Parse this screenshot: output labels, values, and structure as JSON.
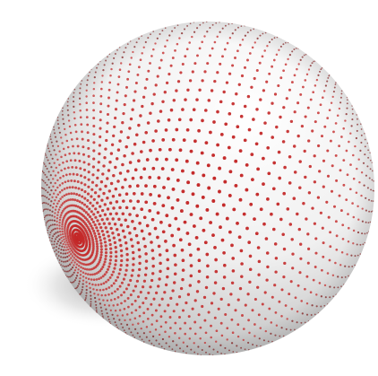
{
  "scene": {
    "background_color": "#ffffff",
    "sphere_color": "#f0f0f0",
    "sphere_shade_color": "#b9b9b9",
    "dot_color": "#c42a2a",
    "dot_dark_color": "#7a1010",
    "shadow_color": "#6f6f6f"
  }
}
